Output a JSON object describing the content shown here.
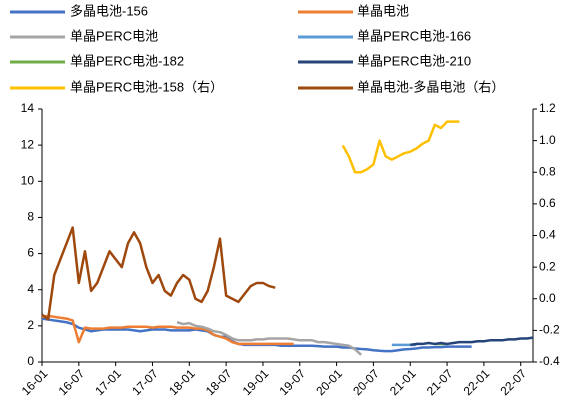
{
  "chart_data": {
    "type": "line",
    "categories": [
      "16-01",
      null,
      null,
      null,
      null,
      null,
      "16-07",
      null,
      null,
      null,
      null,
      null,
      "17-01",
      null,
      null,
      null,
      null,
      null,
      "17-07",
      null,
      null,
      null,
      null,
      null,
      "18-01",
      null,
      null,
      null,
      null,
      null,
      "18-07",
      null,
      null,
      null,
      null,
      null,
      "19-01",
      null,
      null,
      null,
      null,
      null,
      "19-07",
      null,
      null,
      null,
      null,
      null,
      "20-01",
      null,
      null,
      null,
      null,
      null,
      "20-07",
      null,
      null,
      null,
      null,
      null,
      "21-01",
      null,
      null,
      null,
      null,
      null,
      "21-07",
      null,
      null,
      null,
      null,
      null,
      "22-01",
      null,
      null,
      null,
      null,
      null,
      "22-07",
      null,
      null
    ],
    "ylim": [
      0,
      14
    ],
    "yticks": [
      0,
      2,
      4,
      6,
      8,
      10,
      12,
      14
    ],
    "y2lim": [
      -0.4,
      1.2
    ],
    "y2ticks": [
      -0.4,
      -0.2,
      {
        "value": 0,
        "label": "0.0"
      },
      0.2,
      0.4,
      0.6,
      0.8,
      {
        "value": 1,
        "label": "1.0"
      },
      1.2
    ],
    "grid": false,
    "series": [
      {
        "name": "多晶电池-156",
        "color": "#4472c4",
        "values": [
          2.4,
          2.35,
          2.3,
          2.25,
          2.2,
          2.1,
          1.9,
          1.8,
          1.7,
          1.75,
          1.8,
          1.8,
          1.8,
          1.8,
          1.8,
          1.75,
          1.7,
          1.75,
          1.8,
          1.8,
          1.8,
          1.75,
          1.75,
          1.75,
          1.75,
          1.8,
          1.75,
          1.7,
          1.5,
          1.4,
          1.4,
          1.15,
          1.0,
          0.95,
          0.95,
          0.95,
          0.95,
          0.95,
          0.95,
          0.9,
          0.9,
          0.9,
          0.9,
          0.9,
          0.9,
          0.88,
          0.85,
          0.85,
          0.85,
          0.8,
          0.8,
          0.75,
          0.72,
          0.7,
          0.65,
          0.62,
          0.6,
          0.6,
          0.65,
          0.7,
          0.72,
          0.75,
          0.8,
          0.8,
          0.82,
          0.82,
          0.85,
          0.85,
          0.85,
          0.85,
          0.85,
          null,
          null,
          null,
          null,
          null,
          null,
          null,
          null,
          null,
          null
        ]
      },
      {
        "name": "单晶电池",
        "color": "#ed7d31",
        "values": [
          2.5,
          2.55,
          2.5,
          2.45,
          2.4,
          2.3,
          1.1,
          1.9,
          1.85,
          1.85,
          1.85,
          1.9,
          1.9,
          1.9,
          1.95,
          1.95,
          1.95,
          1.95,
          1.9,
          1.95,
          1.95,
          1.95,
          1.9,
          1.9,
          1.9,
          1.85,
          1.85,
          1.75,
          1.5,
          1.4,
          1.3,
          1.1,
          1.0,
          1.0,
          1.0,
          1.0,
          1.0,
          1.0,
          1.0,
          1.0,
          1.0,
          1.0,
          null,
          null,
          null,
          null,
          null,
          null,
          null,
          null,
          null,
          null,
          null,
          null,
          null,
          null,
          null,
          null,
          null,
          null,
          null,
          null,
          null,
          null,
          null,
          null,
          null,
          null,
          null,
          null,
          null,
          null,
          null,
          null,
          null,
          null,
          null,
          null,
          null,
          null,
          null
        ]
      },
      {
        "name": "单晶PERC电池",
        "color": "#a5a5a5",
        "values": [
          null,
          null,
          null,
          null,
          null,
          null,
          null,
          null,
          null,
          null,
          null,
          null,
          null,
          null,
          null,
          null,
          null,
          null,
          null,
          null,
          null,
          null,
          2.2,
          2.1,
          2.15,
          2.0,
          1.95,
          1.85,
          1.7,
          1.65,
          1.5,
          1.3,
          1.2,
          1.2,
          1.2,
          1.25,
          1.25,
          1.3,
          1.3,
          1.3,
          1.3,
          1.25,
          1.2,
          1.2,
          1.2,
          1.1,
          1.1,
          1.05,
          1.0,
          0.95,
          0.9,
          0.7,
          0.4,
          null,
          null,
          null,
          null,
          null,
          null,
          null,
          null,
          null,
          null,
          null,
          null,
          null,
          null,
          null,
          null,
          null,
          null,
          null,
          null,
          null,
          null,
          null,
          null,
          null,
          null,
          null,
          null
        ]
      },
      {
        "name": "单晶PERC电池-166",
        "color": "#5b9bd5",
        "values": [
          null,
          null,
          null,
          null,
          null,
          null,
          null,
          null,
          null,
          null,
          null,
          null,
          null,
          null,
          null,
          null,
          null,
          null,
          null,
          null,
          null,
          null,
          null,
          null,
          null,
          null,
          null,
          null,
          null,
          null,
          null,
          null,
          null,
          null,
          null,
          null,
          null,
          null,
          null,
          null,
          null,
          null,
          null,
          null,
          null,
          null,
          null,
          null,
          null,
          null,
          null,
          null,
          null,
          null,
          null,
          null,
          null,
          0.95,
          0.95,
          0.95,
          0.95,
          0.95,
          null,
          null,
          null,
          null,
          null,
          null,
          null,
          null,
          null,
          null,
          null,
          null,
          null,
          null,
          null,
          null,
          null,
          null,
          null
        ]
      },
      {
        "name": "单晶PERC电池-182",
        "color": "#70ad47",
        "values": [
          null,
          null,
          null,
          null,
          null,
          null,
          null,
          null,
          null,
          null,
          null,
          null,
          null,
          null,
          null,
          null,
          null,
          null,
          null,
          null,
          null,
          null,
          null,
          null,
          null,
          null,
          null,
          null,
          null,
          null,
          null,
          null,
          null,
          null,
          null,
          null,
          null,
          null,
          null,
          null,
          null,
          null,
          null,
          null,
          null,
          null,
          null,
          null,
          null,
          null,
          null,
          null,
          null,
          null,
          null,
          null,
          null,
          null,
          null,
          null,
          null,
          null,
          null,
          null,
          1.0,
          1.0,
          1.0,
          null,
          null,
          null,
          null,
          null,
          null,
          null,
          null,
          null,
          null,
          null,
          null,
          null,
          null
        ]
      },
      {
        "name": "单晶PERC电池-210",
        "color": "#264478",
        "values": [
          null,
          null,
          null,
          null,
          null,
          null,
          null,
          null,
          null,
          null,
          null,
          null,
          null,
          null,
          null,
          null,
          null,
          null,
          null,
          null,
          null,
          null,
          null,
          null,
          null,
          null,
          null,
          null,
          null,
          null,
          null,
          null,
          null,
          null,
          null,
          null,
          null,
          null,
          null,
          null,
          null,
          null,
          null,
          null,
          null,
          null,
          null,
          null,
          null,
          null,
          null,
          null,
          null,
          null,
          null,
          null,
          null,
          null,
          null,
          null,
          0.95,
          1.0,
          1.0,
          1.05,
          1.0,
          1.05,
          1.0,
          1.05,
          1.1,
          1.1,
          1.1,
          1.15,
          1.15,
          1.2,
          1.2,
          1.2,
          1.25,
          1.25,
          1.3,
          1.3,
          1.35
        ]
      },
      {
        "name": "单晶PERC电池-158（右）",
        "color": "#ffc000",
        "axis": "y2",
        "values": [
          null,
          null,
          null,
          null,
          null,
          null,
          null,
          null,
          null,
          null,
          null,
          null,
          null,
          null,
          null,
          null,
          null,
          null,
          null,
          null,
          null,
          null,
          null,
          null,
          null,
          null,
          null,
          null,
          null,
          null,
          null,
          null,
          null,
          null,
          null,
          null,
          null,
          null,
          null,
          null,
          null,
          null,
          null,
          null,
          null,
          null,
          null,
          null,
          null,
          0.97,
          0.9,
          0.8,
          0.8,
          0.82,
          0.85,
          1.0,
          0.9,
          0.88,
          0.9,
          0.92,
          0.93,
          0.95,
          0.98,
          1.0,
          1.1,
          1.08,
          1.12,
          1.12,
          1.12,
          null,
          null,
          null,
          null,
          null,
          null,
          null,
          null,
          null,
          null,
          null,
          null
        ]
      },
      {
        "name": "单晶电池-多晶电池（右）",
        "color": "#9e480e",
        "axis": "y2",
        "values": [
          -0.1,
          -0.13,
          0.15,
          0.25,
          0.35,
          0.45,
          0.1,
          0.3,
          0.05,
          0.1,
          0.2,
          0.3,
          0.25,
          0.2,
          0.35,
          0.42,
          0.35,
          0.2,
          0.1,
          0.15,
          0.05,
          0.02,
          0.1,
          0.15,
          0.12,
          0.0,
          -0.02,
          0.05,
          0.2,
          0.38,
          0.02,
          0.0,
          -0.02,
          0.03,
          0.08,
          0.1,
          0.1,
          0.08,
          0.07,
          null,
          null,
          null,
          null,
          null,
          null,
          null,
          null,
          null,
          null,
          null,
          null,
          null,
          null,
          null,
          null,
          null,
          null,
          null,
          null,
          null,
          null,
          null,
          null,
          null,
          null,
          null,
          null,
          null,
          null,
          null,
          null,
          null,
          null,
          null,
          null,
          null,
          null,
          null,
          null,
          null,
          null
        ]
      }
    ]
  }
}
